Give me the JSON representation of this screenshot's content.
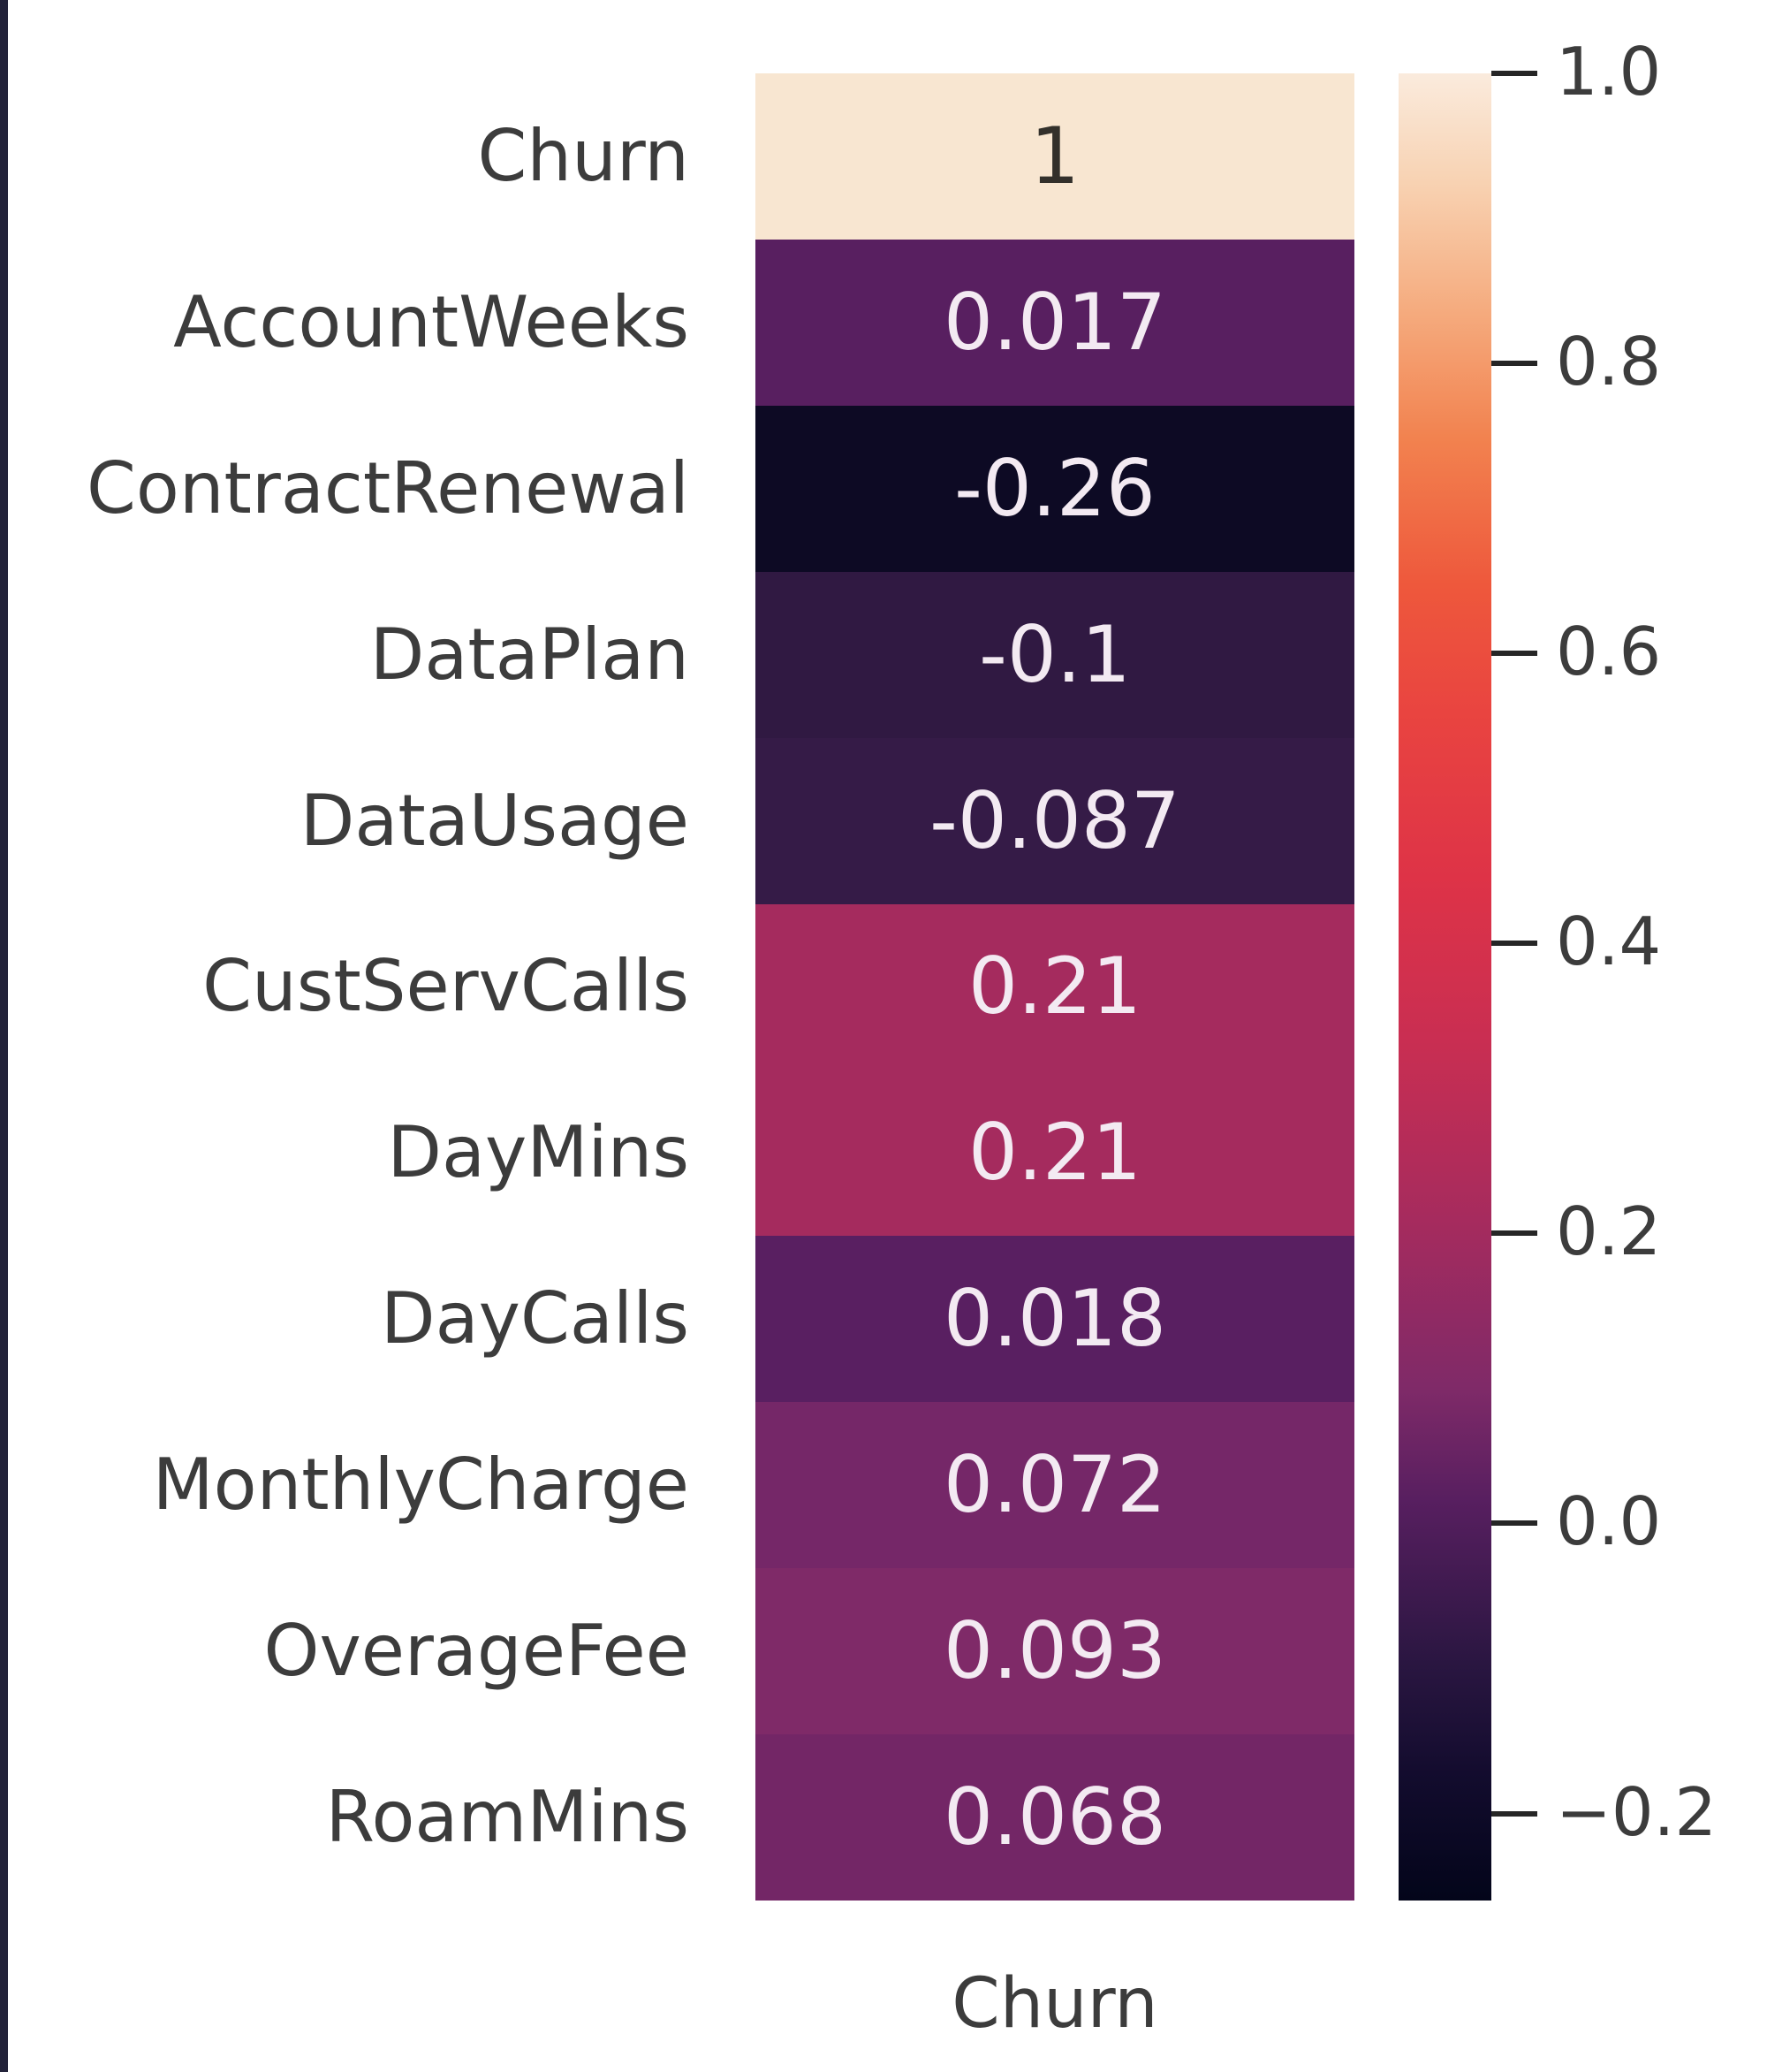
{
  "figure": {
    "background": "#ffffff",
    "left_strip_color": "#23233a",
    "axis_text_color": "#3c3c3c",
    "tick_mark_color": "#262626"
  },
  "chart_data": {
    "type": "heatmap",
    "title": "",
    "colormap": "rocket",
    "x_categories": [
      "Churn"
    ],
    "y_categories": [
      "Churn",
      "AccountWeeks",
      "ContractRenewal",
      "DataPlan",
      "DataUsage",
      "CustServCalls",
      "DayMins",
      "DayCalls",
      "MonthlyCharge",
      "OverageFee",
      "RoamMins"
    ],
    "series": [
      {
        "name": "Churn",
        "values": [
          1,
          0.017,
          -0.26,
          -0.1,
          -0.087,
          0.21,
          0.21,
          0.018,
          0.072,
          0.093,
          0.068
        ]
      }
    ],
    "annotations": [
      "1",
      "0.017",
      "-0.26",
      "-0.1",
      "-0.087",
      "0.21",
      "0.21",
      "0.018",
      "0.072",
      "0.093",
      "0.068"
    ],
    "cell_colors": [
      "#f8e6d1",
      "#581f60",
      "#0d0a24",
      "#301942",
      "#351b47",
      "#a52b5e",
      "#a52b5e",
      "#591f61",
      "#752768",
      "#7f2a68",
      "#732666"
    ],
    "annotation_colors": [
      "#33302b",
      "#f3eaf2",
      "#f3eaf2",
      "#f3eaf2",
      "#f3eaf2",
      "#f3eaf2",
      "#f3eaf2",
      "#f3eaf2",
      "#f3eaf2",
      "#f3eaf2",
      "#f3eaf2"
    ],
    "x_tick_label": "Churn",
    "grid": false,
    "legend": false,
    "colorbar": {
      "vmin": -0.26,
      "vmax": 1.0,
      "ticks": [
        {
          "label": "1.0",
          "value": 1.0
        },
        {
          "label": "0.8",
          "value": 0.8
        },
        {
          "label": "0.6",
          "value": 0.6
        },
        {
          "label": "0.4",
          "value": 0.4
        },
        {
          "label": "0.2",
          "value": 0.2
        },
        {
          "label": "0.0",
          "value": 0.0
        },
        {
          "label": "−0.2",
          "value": -0.2
        }
      ],
      "gradient_stops": [
        {
          "t": 0.0,
          "color": "#03051a"
        },
        {
          "t": 0.07,
          "color": "#130c2e"
        },
        {
          "t": 0.13,
          "color": "#2a1641"
        },
        {
          "t": 0.22,
          "color": "#581f60"
        },
        {
          "t": 0.28,
          "color": "#7f2a68"
        },
        {
          "t": 0.37,
          "color": "#a52b5e"
        },
        {
          "t": 0.47,
          "color": "#c92e52"
        },
        {
          "t": 0.56,
          "color": "#de3347"
        },
        {
          "t": 0.65,
          "color": "#e94440"
        },
        {
          "t": 0.72,
          "color": "#ee583c"
        },
        {
          "t": 0.8,
          "color": "#f2824f"
        },
        {
          "t": 0.87,
          "color": "#f5ab7e"
        },
        {
          "t": 0.94,
          "color": "#f8d2b2"
        },
        {
          "t": 1.0,
          "color": "#faebdd"
        }
      ]
    }
  }
}
